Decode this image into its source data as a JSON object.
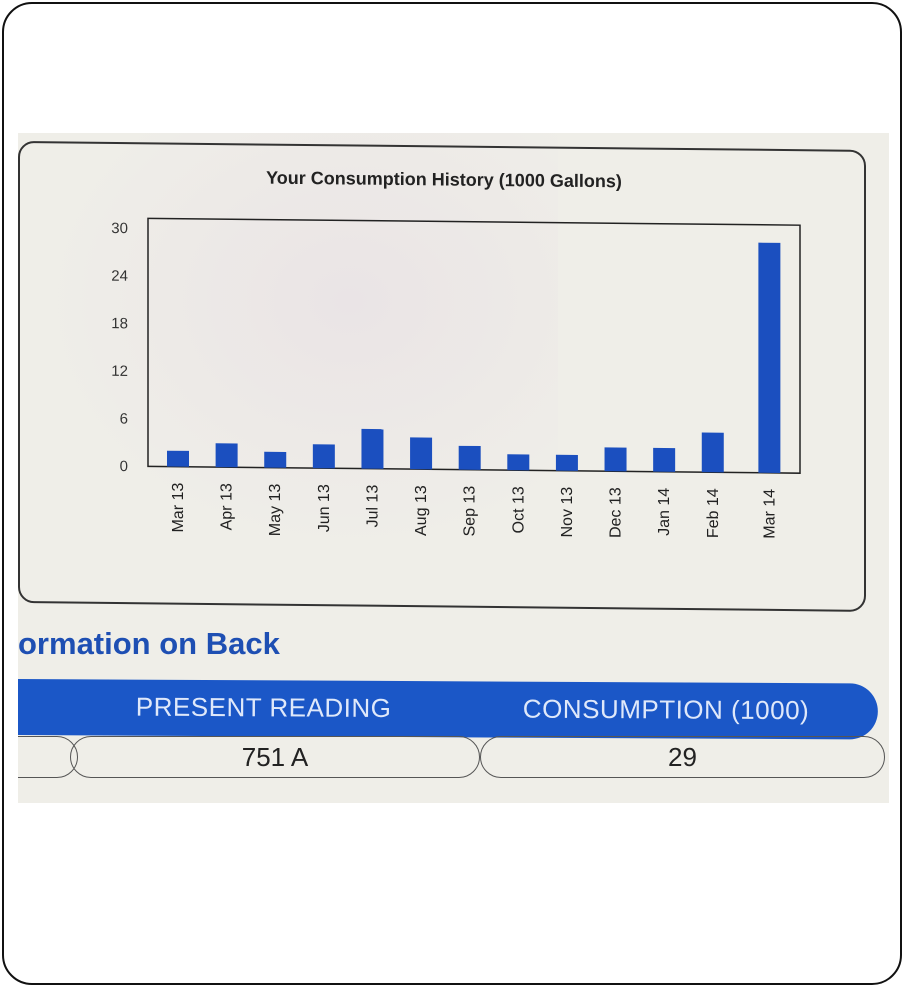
{
  "chart_data": {
    "type": "bar",
    "title": "Your Consumption History (1000 Gallons)",
    "categories": [
      "Mar 13",
      "Apr 13",
      "May 13",
      "Jun 13",
      "Jul 13",
      "Aug 13",
      "Sep 13",
      "Oct 13",
      "Nov 13",
      "Dec 13",
      "Jan 14",
      "Feb 14",
      "Mar 14"
    ],
    "values": [
      2,
      3,
      2,
      3,
      5,
      4,
      3,
      2,
      2,
      3,
      3,
      5,
      29
    ],
    "y_ticks": [
      "0",
      "6",
      "12",
      "18",
      "24",
      "30"
    ],
    "ylim": [
      0,
      30
    ],
    "grid": false,
    "bar_color": "#1b4fbf"
  },
  "section": {
    "title": "ormation on Back"
  },
  "table": {
    "headers": [
      "PRESENT READING",
      "CONSUMPTION (1000)"
    ],
    "values": [
      "751 A",
      "29"
    ]
  },
  "colors": {
    "header_bg": "#1b57c7",
    "title_blue": "#1e4fb3"
  }
}
